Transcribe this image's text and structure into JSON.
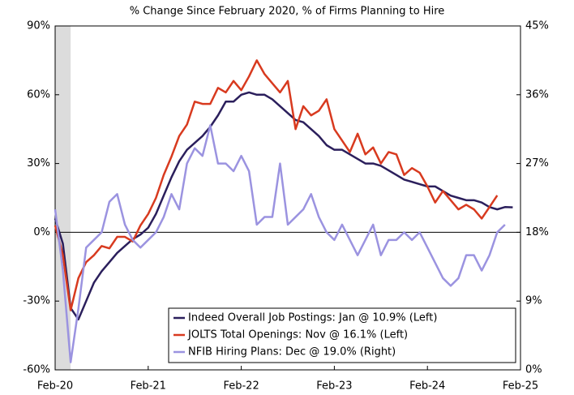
{
  "chart_data": {
    "type": "line",
    "title": "% Change Since February 2020, % of Firms Planning to Hire",
    "xlim": [
      0,
      60
    ],
    "xticks": [
      {
        "value": 0,
        "label": "Feb-20"
      },
      {
        "value": 12,
        "label": "Feb-21"
      },
      {
        "value": 24,
        "label": "Feb-22"
      },
      {
        "value": 36,
        "label": "Feb-23"
      },
      {
        "value": 48,
        "label": "Feb-24"
      },
      {
        "value": 60,
        "label": "Feb-25"
      }
    ],
    "ylim": [
      -60,
      90
    ],
    "yticks": [
      {
        "value": -60,
        "label": "-60%"
      },
      {
        "value": -30,
        "label": "-30%"
      },
      {
        "value": 0,
        "label": "0%"
      },
      {
        "value": 30,
        "label": "30%"
      },
      {
        "value": 60,
        "label": "60%"
      },
      {
        "value": 90,
        "label": "90%"
      }
    ],
    "y2lim": [
      0,
      45
    ],
    "y2ticks": [
      {
        "value": 0,
        "label": "0%"
      },
      {
        "value": 9,
        "label": "9%"
      },
      {
        "value": 18,
        "label": "18%"
      },
      {
        "value": 27,
        "label": "27%"
      },
      {
        "value": 36,
        "label": "36%"
      },
      {
        "value": 45,
        "label": "45%"
      }
    ],
    "zero_line": true,
    "shaded_range": [
      0,
      2
    ],
    "shade_color": "#dcdcdc",
    "legend": "lower right",
    "series": [
      {
        "name": "Indeed Overall Job Postings: Jan @ 10.9% (Left)",
        "color": "#2b1f5c",
        "x": [
          0,
          1,
          2,
          3,
          4,
          5,
          6,
          7,
          8,
          9,
          10,
          11,
          12,
          13,
          14,
          15,
          16,
          17,
          18,
          19,
          20,
          21,
          22,
          23,
          24,
          25,
          26,
          27,
          28,
          29,
          30,
          31,
          32,
          33,
          34,
          35,
          36,
          37,
          38,
          39,
          40,
          41,
          42,
          43,
          44,
          45,
          46,
          47,
          48,
          49,
          50,
          51,
          52,
          53,
          54,
          55,
          56,
          57,
          58,
          59
        ],
        "values": [
          6,
          -5,
          -33,
          -38,
          -30,
          -22,
          -17,
          -13,
          -9,
          -6,
          -3,
          -1,
          2,
          8,
          16,
          24,
          31,
          36,
          39,
          42,
          46,
          51,
          57,
          57,
          60,
          61,
          60,
          60,
          58,
          55,
          52,
          49,
          48,
          45,
          42,
          38,
          36,
          36,
          34,
          32,
          30,
          30,
          29,
          27,
          25,
          23,
          22,
          21,
          20,
          20,
          18,
          16,
          15,
          14,
          14,
          13,
          11,
          10,
          11,
          10.9
        ]
      },
      {
        "name": "JOLTS Total Openings: Nov @ 16.1% (Left)",
        "color": "#d83a1f",
        "x": [
          0,
          1,
          2,
          3,
          4,
          5,
          6,
          7,
          8,
          9,
          10,
          11,
          12,
          13,
          14,
          15,
          16,
          17,
          18,
          19,
          20,
          21,
          22,
          23,
          24,
          25,
          26,
          27,
          28,
          29,
          30,
          31,
          32,
          33,
          34,
          35,
          36,
          37,
          38,
          39,
          40,
          41,
          42,
          43,
          44,
          45,
          46,
          47,
          48,
          49,
          50,
          51,
          52,
          53,
          54,
          55,
          56,
          57
        ],
        "values": [
          3,
          -10,
          -34,
          -20,
          -13,
          -10,
          -6,
          -7,
          -2,
          -2,
          -4,
          3,
          8,
          15,
          25,
          33,
          42,
          47,
          57,
          56,
          56,
          63,
          61,
          66,
          62,
          68,
          75,
          69,
          65,
          61,
          66,
          45,
          55,
          51,
          53,
          58,
          45,
          40,
          35,
          43,
          34,
          37,
          30,
          35,
          34,
          25,
          28,
          26,
          20,
          13,
          18,
          14,
          10,
          12,
          10,
          6,
          11,
          16.1
        ]
      },
      {
        "name": "NFIB Hiring Plans: Dec @ 19.0% (Right)",
        "color": "#9b93e0",
        "axis": "y2",
        "x": [
          0,
          1,
          2,
          3,
          4,
          5,
          6,
          7,
          8,
          9,
          10,
          11,
          12,
          13,
          14,
          15,
          16,
          17,
          18,
          19,
          20,
          21,
          22,
          23,
          24,
          25,
          26,
          27,
          28,
          29,
          30,
          31,
          32,
          33,
          34,
          35,
          36,
          37,
          38,
          39,
          40,
          41,
          42,
          43,
          44,
          45,
          46,
          47,
          48,
          49,
          50,
          51,
          52,
          53,
          54,
          55,
          56,
          57,
          58
        ],
        "values": [
          21,
          13,
          1,
          8,
          16,
          17,
          18,
          22,
          23,
          19,
          17,
          16,
          17,
          18,
          20,
          23,
          21,
          27,
          29,
          28,
          32,
          27,
          27,
          26,
          28,
          26,
          19,
          20,
          20,
          27,
          19,
          20,
          21,
          23,
          20,
          18,
          17,
          19,
          17,
          15,
          17,
          19,
          15,
          17,
          17,
          18,
          17,
          18,
          16,
          14,
          12,
          11,
          12,
          15,
          15,
          13,
          15,
          18,
          19
        ]
      }
    ]
  }
}
